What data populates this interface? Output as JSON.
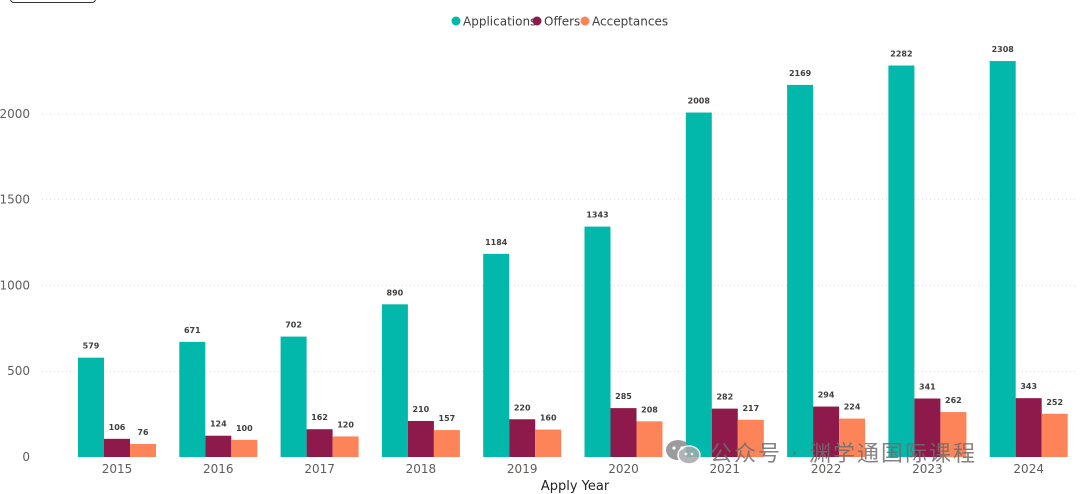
{
  "chart_data": {
    "type": "bar",
    "xlabel": "Apply Year",
    "ylabel": "",
    "ylim": [
      0,
      2400
    ],
    "yticks": [
      0,
      500,
      1000,
      1500,
      2000
    ],
    "grid": true,
    "legend_position": "top-center",
    "categories": [
      "2015",
      "2016",
      "2017",
      "2018",
      "2019",
      "2020",
      "2021",
      "2022",
      "2023",
      "2024"
    ],
    "series": [
      {
        "name": "Applications",
        "color": "#01B8AA",
        "values": [
          579,
          671,
          702,
          890,
          1184,
          1343,
          2008,
          2169,
          2282,
          2308
        ]
      },
      {
        "name": "Offers",
        "color": "#8E1A4B",
        "values": [
          106,
          124,
          162,
          210,
          220,
          285,
          282,
          294,
          341,
          343
        ]
      },
      {
        "name": "Acceptances",
        "color": "#FD8459",
        "values": [
          76,
          100,
          120,
          157,
          160,
          208,
          217,
          224,
          262,
          252
        ]
      }
    ]
  },
  "watermark": {
    "text": "公众号 · 渊学通国际课程",
    "icon": "wechat-icon"
  }
}
